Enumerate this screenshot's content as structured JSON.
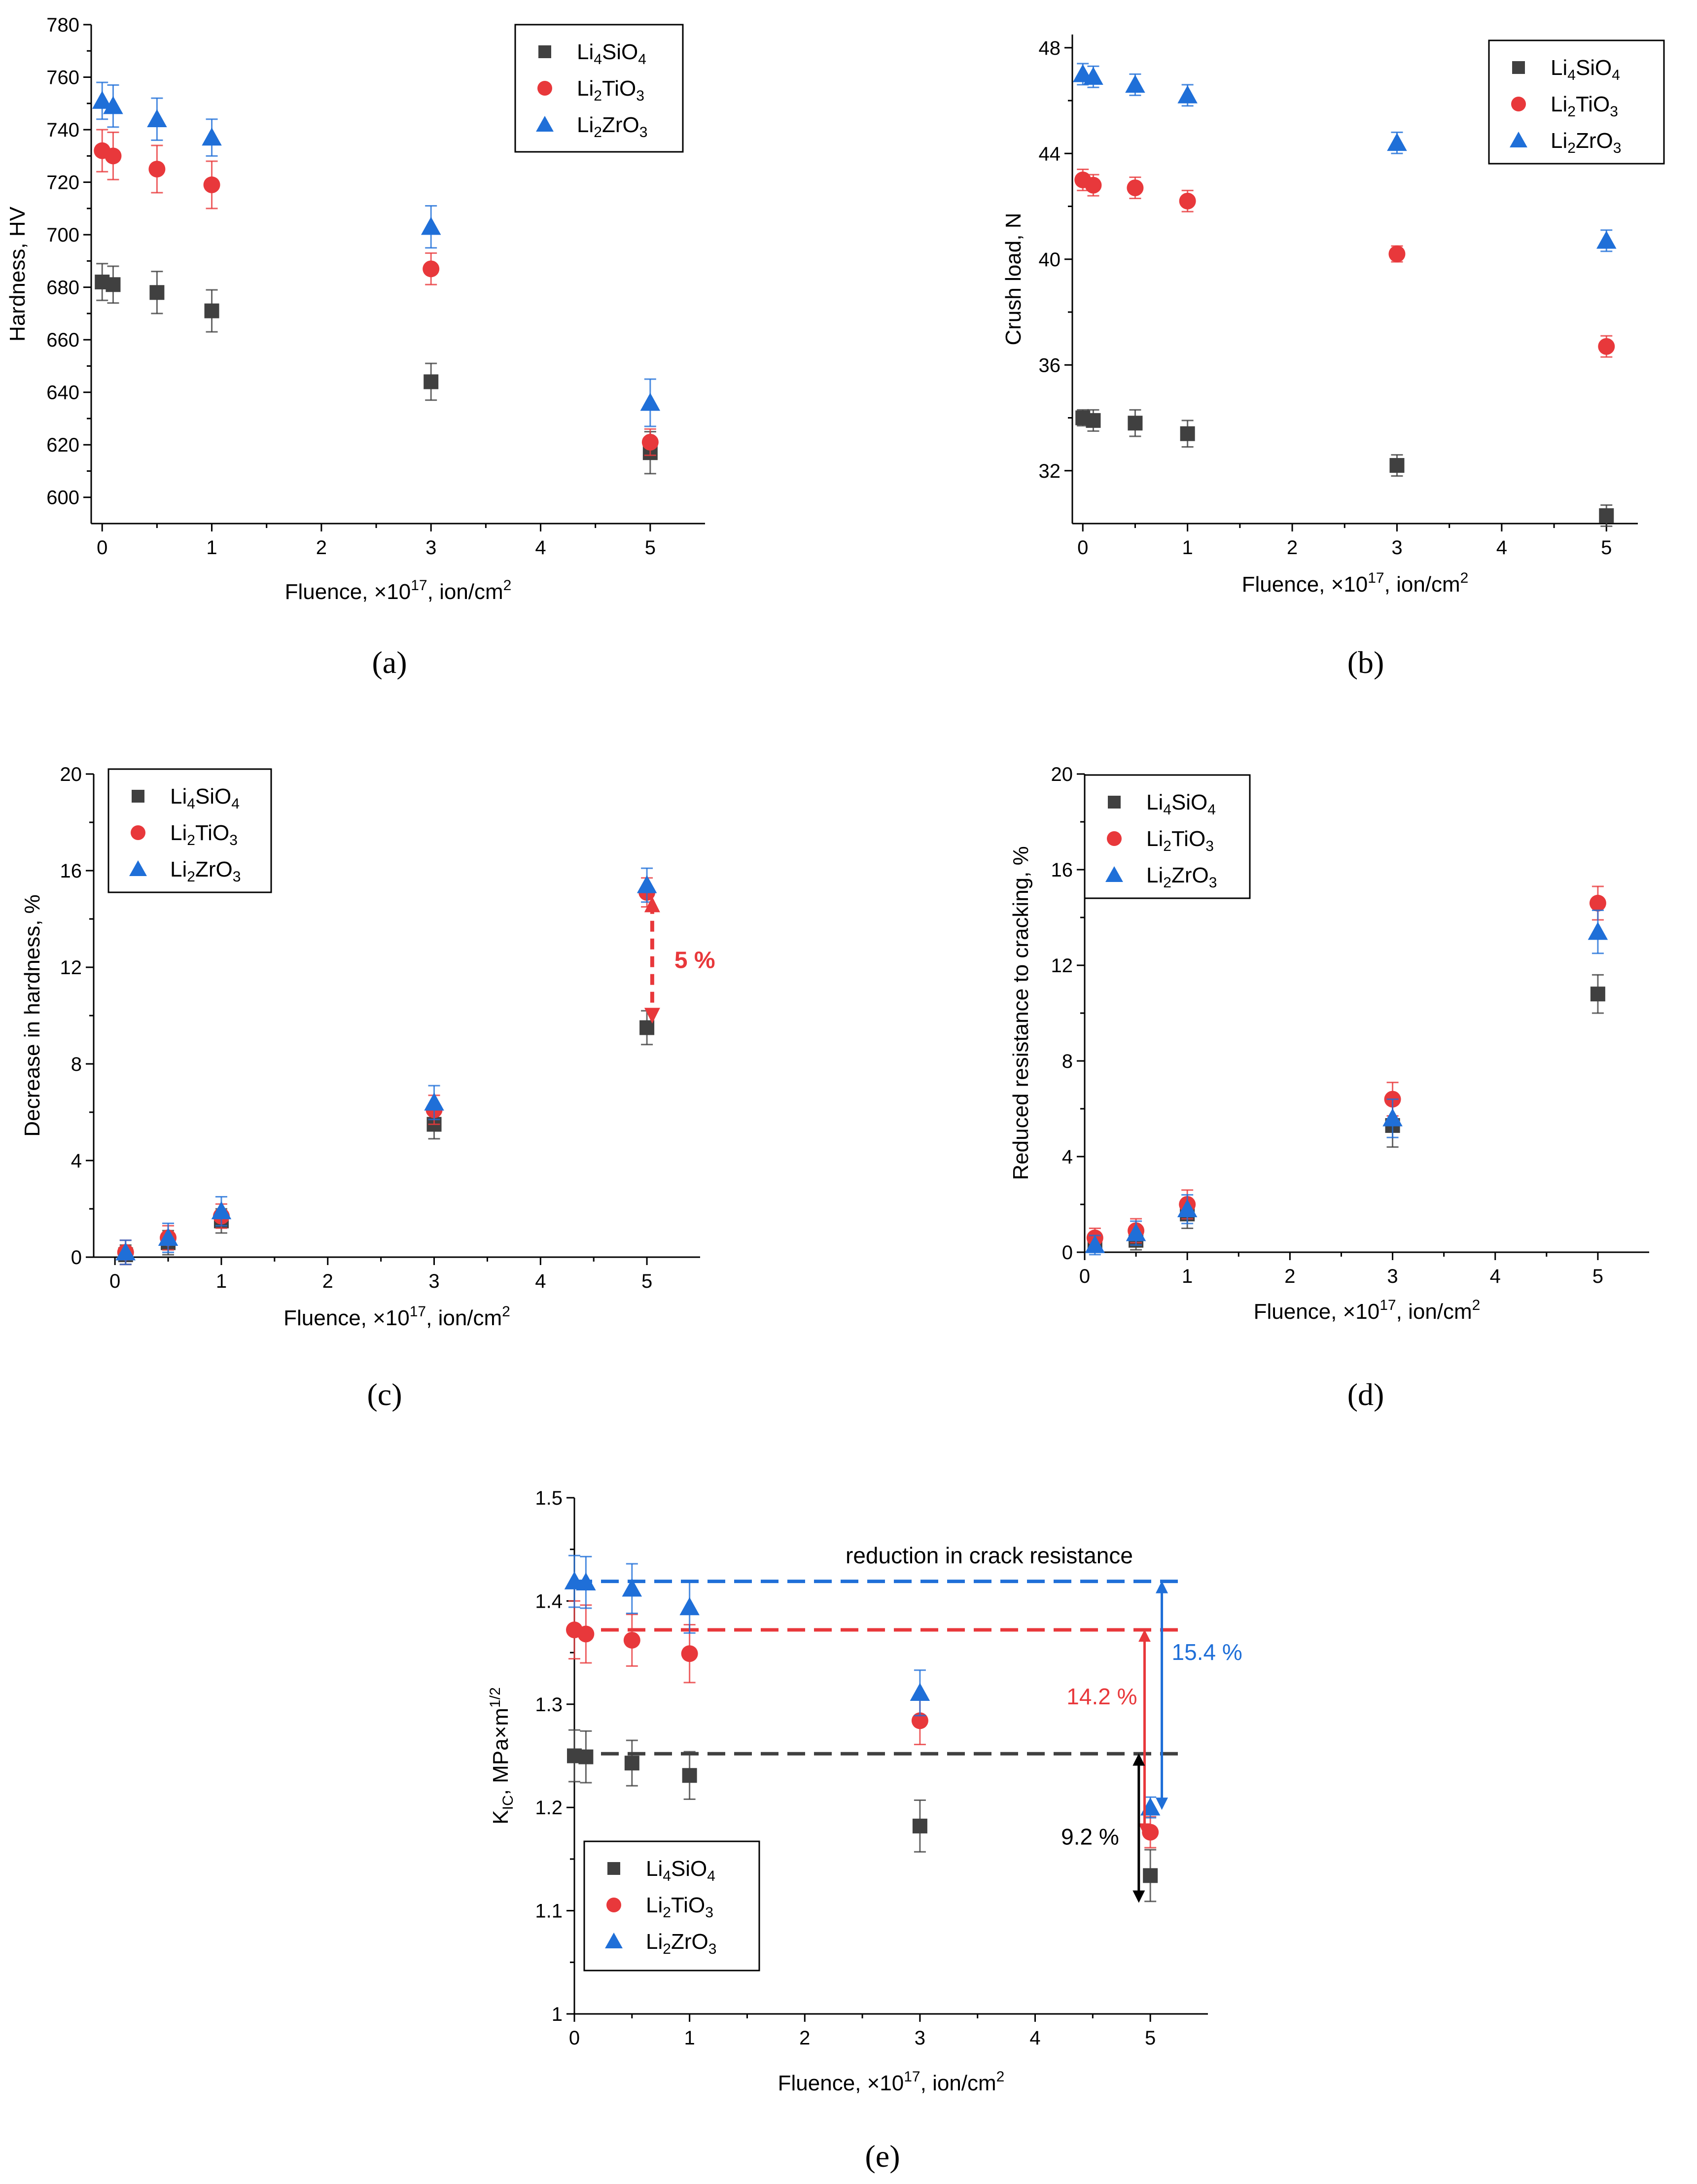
{
  "figure": {
    "colors": {
      "li4sio4": "#404040",
      "li2tio3": "#e8383b",
      "li2zro3": "#1f6fd8",
      "axis": "#000000"
    },
    "legend_entries": [
      {
        "base": "Li",
        "sub1": "4",
        "mid": "SiO",
        "sub2": "4",
        "marker": "square"
      },
      {
        "base": "Li",
        "sub1": "2",
        "mid": "TiO",
        "sub2": "3",
        "marker": "circle"
      },
      {
        "base": "Li",
        "sub1": "2",
        "mid": "ZrO",
        "sub2": "3",
        "marker": "triangle"
      }
    ],
    "xlabel": {
      "text": "Fluence, ×10",
      "sup": "17",
      "text2": ", ion/cm",
      "sup2": "2"
    }
  },
  "chart_data": [
    {
      "id": "a",
      "type": "scatter",
      "panel_label": "(a)",
      "ylabel": "Hardness, HV",
      "xlim": [
        -0.1,
        5.5
      ],
      "ylim": [
        590,
        780
      ],
      "xticks": [
        0,
        1,
        2,
        3,
        4,
        5
      ],
      "yticks": [
        600,
        620,
        640,
        660,
        680,
        700,
        720,
        740,
        760,
        780
      ],
      "legend_position": "top-right",
      "series": [
        {
          "name": "Li4SiO4",
          "x": [
            0,
            0.1,
            0.5,
            1,
            3,
            5
          ],
          "y": [
            682,
            681,
            678,
            671,
            644,
            617
          ],
          "err": [
            7,
            7,
            8,
            8,
            7,
            8
          ]
        },
        {
          "name": "Li2TiO3",
          "x": [
            0,
            0.1,
            0.5,
            1,
            3,
            5
          ],
          "y": [
            732,
            730,
            725,
            719,
            687,
            621
          ],
          "err": [
            8,
            9,
            9,
            9,
            6,
            5
          ]
        },
        {
          "name": "Li2ZrO3",
          "x": [
            0,
            0.1,
            0.5,
            1,
            3,
            5
          ],
          "y": [
            751,
            749,
            744,
            737,
            703,
            636
          ],
          "err": [
            7,
            8,
            8,
            7,
            8,
            9
          ]
        }
      ]
    },
    {
      "id": "b",
      "type": "scatter",
      "panel_label": "(b)",
      "ylabel": "Crush load, N",
      "xlim": [
        -0.1,
        5.3
      ],
      "ylim": [
        30,
        48.5
      ],
      "xticks": [
        0,
        1,
        2,
        3,
        4,
        5
      ],
      "yticks": [
        32,
        36,
        40,
        44,
        48
      ],
      "legend_position": "top-right",
      "series": [
        {
          "name": "Li4SiO4",
          "x": [
            0,
            0.1,
            0.5,
            1,
            3,
            5
          ],
          "y": [
            34.0,
            33.9,
            33.8,
            33.4,
            32.2,
            30.3
          ],
          "err": [
            0.3,
            0.4,
            0.5,
            0.5,
            0.4,
            0.4
          ]
        },
        {
          "name": "Li2TiO3",
          "x": [
            0,
            0.1,
            0.5,
            1,
            3,
            5
          ],
          "y": [
            43.0,
            42.8,
            42.7,
            42.2,
            40.2,
            36.7
          ],
          "err": [
            0.4,
            0.4,
            0.4,
            0.4,
            0.3,
            0.4
          ]
        },
        {
          "name": "Li2ZrO3",
          "x": [
            0,
            0.1,
            0.5,
            1,
            3,
            5
          ],
          "y": [
            47.0,
            46.9,
            46.6,
            46.2,
            44.4,
            40.7
          ],
          "err": [
            0.4,
            0.4,
            0.4,
            0.4,
            0.4,
            0.4
          ]
        }
      ]
    },
    {
      "id": "c",
      "type": "scatter",
      "panel_label": "(c)",
      "ylabel": "Decrease in hardness, %",
      "xlim": [
        -0.2,
        5.5
      ],
      "ylim": [
        0,
        20
      ],
      "xticks": [
        0,
        1,
        2,
        3,
        4,
        5
      ],
      "yticks": [
        0,
        4,
        8,
        12,
        16,
        20
      ],
      "legend_position": "top-left",
      "annotation": {
        "text": "5 %",
        "x": 5.05,
        "y_top": 14.8,
        "y_bottom": 9.8
      },
      "series": [
        {
          "name": "Li4SiO4",
          "x": [
            0.1,
            0.5,
            1,
            3,
            5
          ],
          "y": [
            0.1,
            0.6,
            1.5,
            5.5,
            9.5
          ],
          "err": [
            0.4,
            0.5,
            0.5,
            0.6,
            0.7
          ]
        },
        {
          "name": "Li2TiO3",
          "x": [
            0.1,
            0.5,
            1,
            3,
            5
          ],
          "y": [
            0.2,
            0.8,
            1.7,
            6.1,
            15.1
          ],
          "err": [
            0.5,
            0.5,
            0.5,
            0.6,
            0.6
          ]
        },
        {
          "name": "Li2ZrO3",
          "x": [
            0.1,
            0.5,
            1,
            3,
            5
          ],
          "y": [
            0.2,
            0.8,
            1.9,
            6.4,
            15.4
          ],
          "err": [
            0.5,
            0.6,
            0.6,
            0.7,
            0.7
          ]
        }
      ]
    },
    {
      "id": "d",
      "type": "scatter",
      "panel_label": "(d)",
      "ylabel": "Reduced resistance to cracking, %",
      "xlim": [
        0,
        5.5
      ],
      "ylim": [
        0,
        20
      ],
      "xticks": [
        0,
        1,
        2,
        3,
        4,
        5
      ],
      "yticks": [
        0,
        4,
        8,
        12,
        16,
        20
      ],
      "legend_position": "top-right",
      "series": [
        {
          "name": "Li4SiO4",
          "x": [
            0.1,
            0.5,
            1,
            3,
            5
          ],
          "y": [
            0.3,
            0.5,
            1.6,
            5.3,
            10.8
          ],
          "err": [
            0.3,
            0.4,
            0.6,
            0.9,
            0.8
          ]
        },
        {
          "name": "Li2TiO3",
          "x": [
            0.1,
            0.5,
            1,
            3,
            5
          ],
          "y": [
            0.6,
            0.9,
            2.0,
            6.4,
            14.6
          ],
          "err": [
            0.4,
            0.5,
            0.6,
            0.7,
            0.7
          ]
        },
        {
          "name": "Li2ZrO3",
          "x": [
            0.1,
            0.5,
            1,
            3,
            5
          ],
          "y": [
            0.3,
            0.8,
            1.8,
            5.6,
            13.4
          ],
          "err": [
            0.4,
            0.5,
            0.6,
            0.8,
            0.9
          ]
        }
      ]
    },
    {
      "id": "e",
      "type": "scatter",
      "panel_label": "(e)",
      "ylabel": {
        "base": "K",
        "sub": "IC",
        "rest": ", MPa×m",
        "sup": "1/2"
      },
      "xlim": [
        0,
        5.5
      ],
      "ylim": [
        1.0,
        1.5
      ],
      "xticks": [
        0,
        1,
        2,
        3,
        4,
        5
      ],
      "yticks": [
        1.0,
        1.1,
        1.2,
        1.3,
        1.4,
        1.5
      ],
      "legend_position": "bottom-left",
      "reference_lines": [
        {
          "series": "Li2ZrO3",
          "y": 1.419,
          "x_end": 5.3
        },
        {
          "series": "Li2TiO3",
          "y": 1.372,
          "x_end": 5.3
        },
        {
          "series": "Li4SiO4",
          "y": 1.252,
          "x_end": 5.3
        }
      ],
      "annotations": [
        {
          "text": "reduction in crack resistance",
          "color": "#000000"
        },
        {
          "text": "14.2 %",
          "color": "#e8383b",
          "x": 4.95,
          "y_top": 1.37,
          "y_bottom": 1.175
        },
        {
          "text": "15.4 %",
          "color": "#1f6fd8",
          "x": 5.1,
          "y_top": 1.417,
          "y_bottom": 1.2
        },
        {
          "text": "9.2 %",
          "color": "#000000",
          "x": 4.9,
          "y_top": 1.25,
          "y_bottom": 1.11
        }
      ],
      "series": [
        {
          "name": "Li4SiO4",
          "x": [
            0,
            0.1,
            0.5,
            1,
            3,
            5
          ],
          "y": [
            1.25,
            1.249,
            1.243,
            1.231,
            1.182,
            1.134
          ],
          "err": [
            0.025,
            0.025,
            0.022,
            0.023,
            0.025,
            0.025
          ]
        },
        {
          "name": "Li2TiO3",
          "x": [
            0,
            0.1,
            0.5,
            1,
            3,
            5
          ],
          "y": [
            1.372,
            1.368,
            1.362,
            1.349,
            1.284,
            1.176
          ],
          "err": [
            0.028,
            0.028,
            0.025,
            0.028,
            0.023,
            0.015
          ]
        },
        {
          "name": "Li2ZrO3",
          "x": [
            0,
            0.1,
            0.5,
            1,
            3,
            5
          ],
          "y": [
            1.419,
            1.418,
            1.412,
            1.394,
            1.311,
            1.2
          ],
          "err": [
            0.025,
            0.025,
            0.024,
            0.025,
            0.022,
            0.01
          ]
        }
      ]
    }
  ]
}
